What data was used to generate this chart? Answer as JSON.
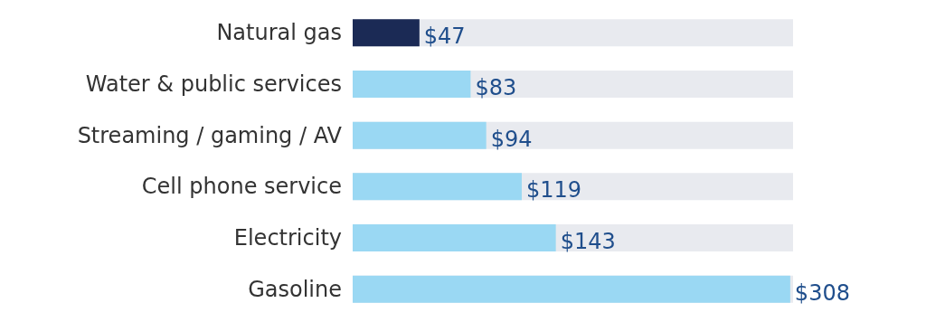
{
  "chart_data": {
    "type": "bar",
    "orientation": "horizontal",
    "categories": [
      "Natural gas",
      "Water & public services",
      "Streaming / gaming / AV",
      "Cell phone service",
      "Electricity",
      "Gasoline"
    ],
    "values": [
      47,
      83,
      94,
      119,
      143,
      308
    ],
    "colors": [
      "#1b2a55",
      "#9ad8f3",
      "#9ad8f3",
      "#9ad8f3",
      "#9ad8f3",
      "#9ad8f3"
    ],
    "value_labels": [
      "$47",
      "$83",
      "$94",
      "$119",
      "$143",
      "$308"
    ],
    "xlim": [
      0,
      310
    ]
  }
}
